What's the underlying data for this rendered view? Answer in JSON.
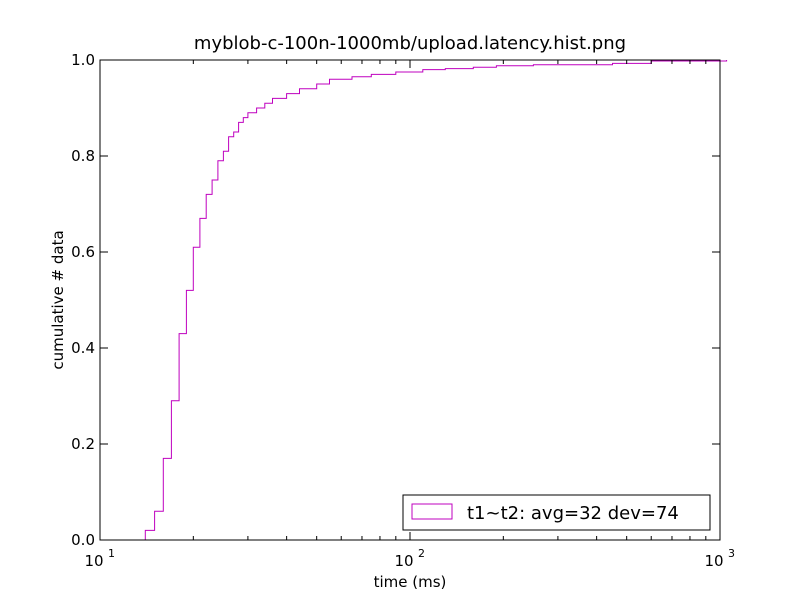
{
  "chart_data": {
    "type": "line",
    "title": "myblob-c-100n-1000mb/upload.latency.hist.png",
    "xlabel": "time (ms)",
    "ylabel": "cumulative # data",
    "xscale": "log",
    "xlim": [
      10,
      1000
    ],
    "ylim": [
      0.0,
      1.0
    ],
    "grid": false,
    "legend_position": "lower-right",
    "series_color": "#bf00bf",
    "x_ticks": [
      {
        "value": 10,
        "base": "10",
        "exp": "1"
      },
      {
        "value": 100,
        "base": "10",
        "exp": "2"
      },
      {
        "value": 1000,
        "base": "10",
        "exp": "3"
      }
    ],
    "y_ticks": [
      {
        "value": 0.0,
        "label": "0.0"
      },
      {
        "value": 0.2,
        "label": "0.2"
      },
      {
        "value": 0.4,
        "label": "0.4"
      },
      {
        "value": 0.6,
        "label": "0.6"
      },
      {
        "value": 0.8,
        "label": "0.8"
      },
      {
        "value": 1.0,
        "label": "1.0"
      }
    ],
    "series": [
      {
        "name": "t1~t2: avg=32 dev=74",
        "step": "post",
        "x": [
          14,
          15,
          16,
          17,
          18,
          19,
          20,
          21,
          22,
          23,
          24,
          25,
          26,
          27,
          28,
          29,
          30,
          32,
          34,
          36,
          40,
          44,
          50,
          55,
          65,
          75,
          90,
          110,
          130,
          160,
          190,
          250,
          450,
          600,
          1050
        ],
        "y": [
          0.02,
          0.06,
          0.17,
          0.29,
          0.43,
          0.52,
          0.61,
          0.67,
          0.72,
          0.75,
          0.79,
          0.81,
          0.84,
          0.85,
          0.87,
          0.88,
          0.89,
          0.9,
          0.91,
          0.92,
          0.93,
          0.94,
          0.95,
          0.96,
          0.965,
          0.97,
          0.975,
          0.98,
          0.982,
          0.985,
          0.988,
          0.99,
          0.993,
          0.998,
          1.0
        ]
      }
    ]
  }
}
